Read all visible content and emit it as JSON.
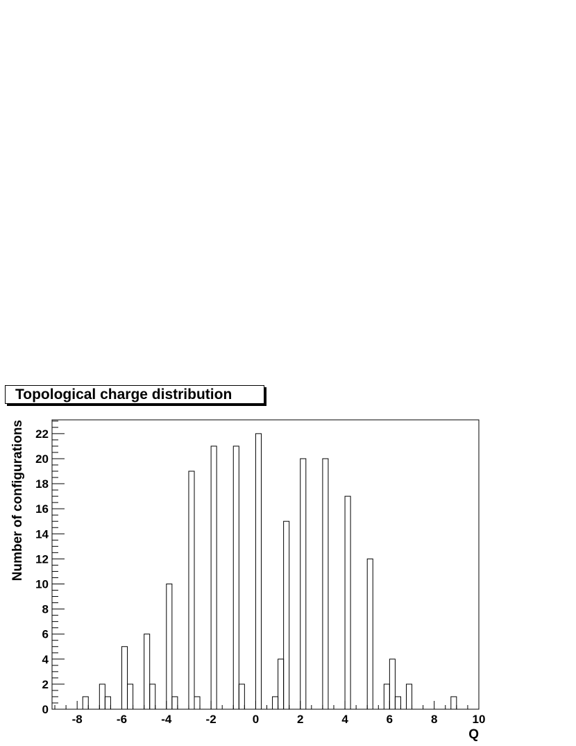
{
  "chart_data": {
    "type": "bar",
    "title": "Topological charge distribution",
    "xlabel": "Q",
    "ylabel": "Number of configurations",
    "xlim": [
      -9.125,
      10
    ],
    "ylim": [
      0,
      23.1
    ],
    "bin_width": 0.25,
    "x_ticks": [
      "-8",
      "-6",
      "-4",
      "-2",
      "0",
      "2",
      "4",
      "6",
      "8",
      "10"
    ],
    "y_ticks": [
      "0",
      "2",
      "4",
      "6",
      "8",
      "10",
      "12",
      "14",
      "16",
      "18",
      "20",
      "22"
    ],
    "bins": [
      {
        "x": -7.625,
        "value": 1
      },
      {
        "x": -6.875,
        "value": 2
      },
      {
        "x": -6.625,
        "value": 1
      },
      {
        "x": -5.875,
        "value": 5
      },
      {
        "x": -5.625,
        "value": 2
      },
      {
        "x": -4.875,
        "value": 6
      },
      {
        "x": -4.625,
        "value": 2
      },
      {
        "x": -3.875,
        "value": 10
      },
      {
        "x": -3.625,
        "value": 1
      },
      {
        "x": -2.875,
        "value": 19
      },
      {
        "x": -2.625,
        "value": 1
      },
      {
        "x": -1.875,
        "value": 21
      },
      {
        "x": -0.875,
        "value": 21
      },
      {
        "x": -0.625,
        "value": 2
      },
      {
        "x": 0.125,
        "value": 22
      },
      {
        "x": 0.875,
        "value": 1
      },
      {
        "x": 1.125,
        "value": 4
      },
      {
        "x": 1.375,
        "value": 15
      },
      {
        "x": 2.125,
        "value": 20
      },
      {
        "x": 3.125,
        "value": 20
      },
      {
        "x": 4.125,
        "value": 17
      },
      {
        "x": 5.125,
        "value": 12
      },
      {
        "x": 5.875,
        "value": 2
      },
      {
        "x": 6.125,
        "value": 4
      },
      {
        "x": 6.375,
        "value": 1
      },
      {
        "x": 6.875,
        "value": 2
      },
      {
        "x": 8.875,
        "value": 1
      }
    ],
    "grid": false,
    "legend": "none",
    "line_color": "#000000"
  }
}
